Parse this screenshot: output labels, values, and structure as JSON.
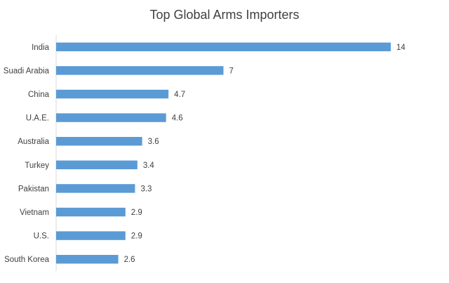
{
  "chart_data": {
    "type": "bar",
    "orientation": "horizontal",
    "title": "Top Global Arms Importers",
    "categories": [
      "India",
      "Suadi Arabia",
      "China",
      "U.A.E.",
      "Australia",
      "Turkey",
      "Pakistan",
      "Vietnam",
      "U.S.",
      "South Korea"
    ],
    "values": [
      14,
      7,
      4.7,
      4.6,
      3.6,
      3.4,
      3.3,
      2.9,
      2.9,
      2.6
    ],
    "value_labels": [
      "14",
      "7",
      "4.7",
      "4.6",
      "3.6",
      "3.4",
      "3.3",
      "2.9",
      "2.9",
      "2.6"
    ],
    "xlim": [
      0,
      14
    ],
    "grid": false,
    "legend": "none",
    "bar_color": "#5b9bd5"
  }
}
